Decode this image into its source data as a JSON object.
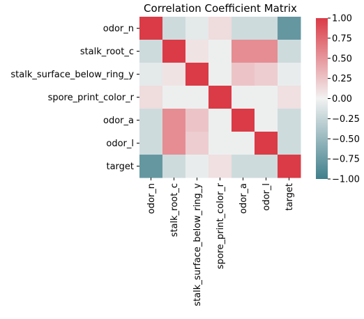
{
  "chart_data": {
    "type": "heatmap",
    "title": "Correlation Coefficient Matrix",
    "row_labels": [
      "odor_n",
      "stalk_root_c",
      "stalk_surface_below_ring_y",
      "spore_print_color_r",
      "odor_a",
      "odor_l",
      "target"
    ],
    "col_labels": [
      "odor_n",
      "stalk_root_c",
      "stalk_surface_below_ring_y",
      "spore_print_color_r",
      "odor_a",
      "odor_l",
      "target"
    ],
    "values": [
      [
        1.0,
        -0.2,
        -0.08,
        0.12,
        -0.2,
        -0.2,
        -0.79
      ],
      [
        -0.2,
        1.0,
        0.08,
        -0.03,
        0.55,
        0.55,
        -0.2
      ],
      [
        -0.08,
        0.08,
        1.0,
        -0.03,
        0.25,
        0.2,
        -0.05
      ],
      [
        0.12,
        -0.03,
        -0.03,
        1.0,
        -0.03,
        -0.03,
        0.1
      ],
      [
        -0.2,
        0.55,
        0.25,
        -0.03,
        1.0,
        -0.03,
        -0.2
      ],
      [
        -0.2,
        0.55,
        0.2,
        -0.03,
        -0.03,
        1.0,
        -0.2
      ],
      [
        -0.79,
        -0.2,
        -0.05,
        0.1,
        -0.2,
        -0.2,
        1.0
      ]
    ],
    "colorbar": {
      "range": [
        -1.0,
        1.0
      ],
      "ticks": [
        "1.00",
        "0.75",
        "0.50",
        "0.25",
        "0.00",
        "−0.25",
        "−0.50",
        "−0.75",
        "−1.00"
      ],
      "tick_values": [
        1.0,
        0.75,
        0.5,
        0.25,
        0.0,
        -0.25,
        -0.5,
        -0.75,
        -1.0
      ],
      "colors": {
        "negative": "#3f7f8b",
        "center": "#f2f2f2",
        "positive": "#da3b46"
      }
    }
  }
}
